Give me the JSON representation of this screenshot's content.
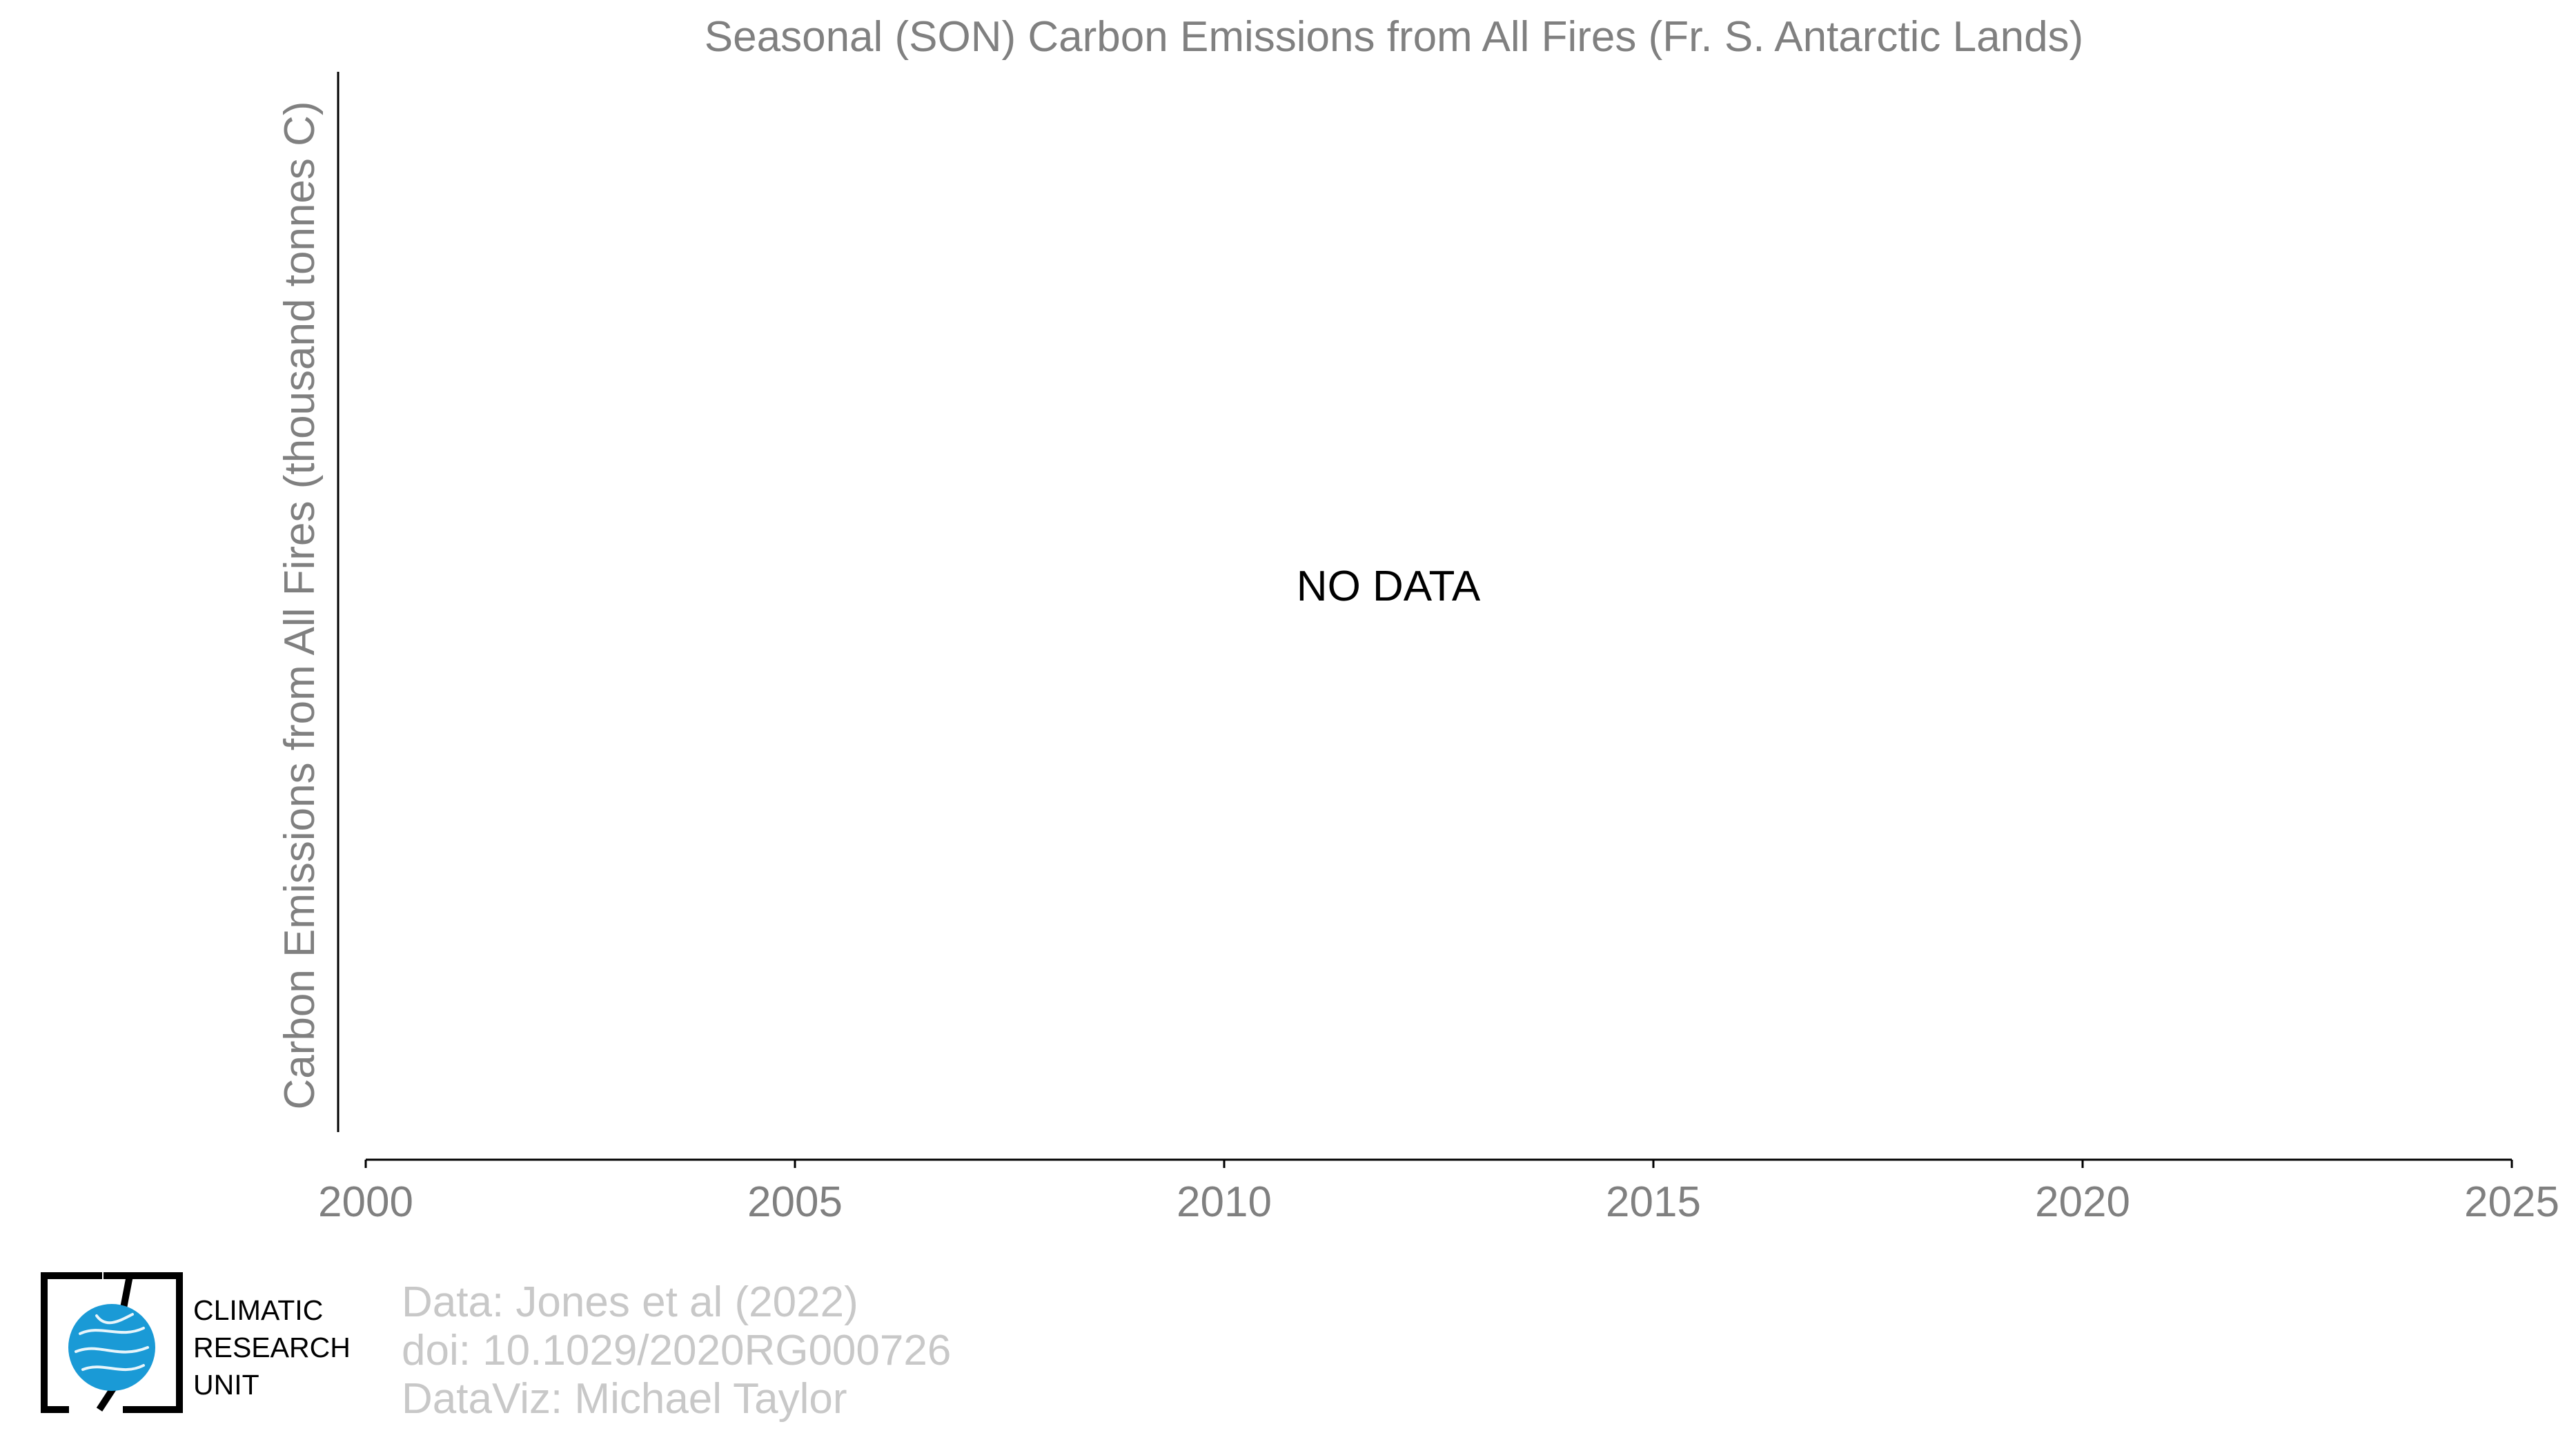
{
  "chart_data": {
    "type": "line",
    "title": "Seasonal (SON) Carbon Emissions from All Fires (Fr. S. Antarctic Lands)",
    "ylabel": "Carbon Emissions from All Fires (thousand tonnes C)",
    "xlabel": "",
    "xlim": [
      2000,
      2025
    ],
    "x_ticks": [
      "2000",
      "2005",
      "2010",
      "2015",
      "2020",
      "2025"
    ],
    "series": [],
    "annotation": "NO DATA",
    "grid": false
  },
  "credits": {
    "line1": "Data: Jones et al (2022)",
    "line2": "doi: 10.1029/2020RG000726",
    "line3": "DataViz: Michael Taylor"
  },
  "logo": {
    "line1": "CLIMATIC",
    "line2": "RESEARCH",
    "line3": "UNIT"
  },
  "colors": {
    "text_gray": "#808080",
    "credit_gray": "#c8c8c8",
    "axis": "#000000",
    "logo_blue": "#1a9ad6"
  }
}
